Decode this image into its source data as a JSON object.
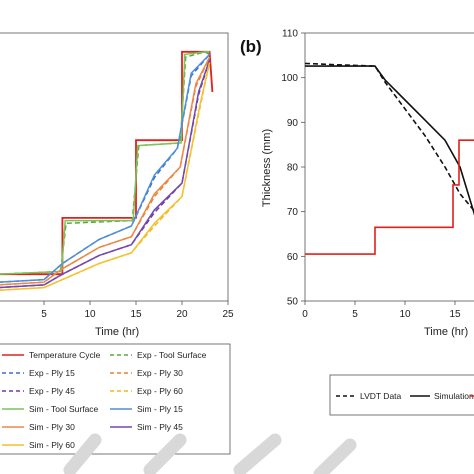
{
  "chart_data": [
    {
      "panel": "a",
      "type": "line",
      "xlabel": "Time (hr)",
      "ylabel": "",
      "xlim": [
        0,
        25
      ],
      "xticks": [
        "5",
        "10",
        "15",
        "20",
        "25"
      ],
      "series": [
        {
          "name": "Temperature Cycle",
          "color": "#e0201b",
          "dash": "solid",
          "x": [
            0,
            7,
            7,
            15,
            15,
            20,
            20,
            23,
            23.3
          ],
          "y": [
            0.1,
            0.1,
            0.31,
            0.31,
            0.6,
            0.6,
            0.93,
            0.93,
            0.78
          ]
        },
        {
          "name": "Exp - Tool Surface",
          "color": "#5aa83c",
          "dash": "dashed",
          "x": [
            0,
            6.8,
            7.4,
            14.6,
            15.3,
            19.8,
            20.4,
            22.5,
            23
          ],
          "y": [
            0.1,
            0.11,
            0.29,
            0.3,
            0.58,
            0.59,
            0.91,
            0.93,
            0.92
          ]
        },
        {
          "name": "Exp - Ply 15",
          "color": "#3a6fc4",
          "dash": "dashed",
          "x": [
            0,
            5,
            7,
            11,
            14.5,
            17,
            19.5,
            21,
            23
          ],
          "y": [
            0.07,
            0.08,
            0.14,
            0.23,
            0.28,
            0.46,
            0.57,
            0.84,
            0.92
          ]
        },
        {
          "name": "Exp - Ply 30",
          "color": "#f07e26",
          "dash": "dashed",
          "x": [
            0,
            5,
            7,
            11,
            14.5,
            17,
            19.8,
            21.5,
            23
          ],
          "y": [
            0.06,
            0.07,
            0.12,
            0.2,
            0.24,
            0.39,
            0.5,
            0.8,
            0.91
          ]
        },
        {
          "name": "Exp - Ply 45",
          "color": "#6a3da3",
          "dash": "dashed",
          "x": [
            0,
            5,
            7,
            11,
            14.5,
            17,
            20,
            21.8,
            23
          ],
          "y": [
            0.05,
            0.06,
            0.1,
            0.17,
            0.21,
            0.33,
            0.44,
            0.77,
            0.9
          ]
        },
        {
          "name": "Exp - Ply 60",
          "color": "#f2b91c",
          "dash": "dashed",
          "x": [
            0,
            5,
            7,
            11,
            14.5,
            17,
            20,
            22,
            23
          ],
          "y": [
            0.04,
            0.05,
            0.08,
            0.14,
            0.18,
            0.28,
            0.39,
            0.73,
            0.89
          ]
        },
        {
          "name": "Sim - Tool Surface",
          "color": "#7dc25a",
          "dash": "solid",
          "x": [
            0,
            6.9,
            7.3,
            14.7,
            15.2,
            19.9,
            20.3,
            22.6,
            23
          ],
          "y": [
            0.1,
            0.11,
            0.3,
            0.3,
            0.58,
            0.59,
            0.92,
            0.93,
            0.93
          ]
        },
        {
          "name": "Sim - Ply 15",
          "color": "#4c8fdc",
          "dash": "solid",
          "x": [
            0,
            5,
            7,
            11,
            14.5,
            17,
            19.5,
            21,
            23
          ],
          "y": [
            0.07,
            0.08,
            0.14,
            0.23,
            0.28,
            0.47,
            0.57,
            0.85,
            0.92
          ]
        },
        {
          "name": "Sim - Ply 30",
          "color": "#ea8a4a",
          "dash": "solid",
          "x": [
            0,
            5,
            7,
            11,
            14.5,
            17,
            19.8,
            21.5,
            23
          ],
          "y": [
            0.06,
            0.07,
            0.12,
            0.2,
            0.24,
            0.4,
            0.5,
            0.81,
            0.91
          ]
        },
        {
          "name": "Sim - Ply 45",
          "color": "#7448b0",
          "dash": "solid",
          "x": [
            0,
            5,
            7,
            11,
            14.5,
            17,
            20,
            21.8,
            23
          ],
          "y": [
            0.05,
            0.06,
            0.1,
            0.17,
            0.21,
            0.34,
            0.44,
            0.78,
            0.9
          ]
        },
        {
          "name": "Sim - Ply 60",
          "color": "#f5c12e",
          "dash": "solid",
          "x": [
            0,
            5,
            7,
            11,
            14.5,
            17,
            20,
            22,
            23
          ],
          "y": [
            0.04,
            0.05,
            0.08,
            0.14,
            0.18,
            0.29,
            0.39,
            0.74,
            0.89
          ]
        }
      ]
    },
    {
      "panel": "b",
      "panel_label": "(b)",
      "type": "line",
      "xlabel": "Time (hr)",
      "ylabel": "Thickness (mm)",
      "xlim": [
        0,
        17.5
      ],
      "ylim": [
        50,
        110
      ],
      "xticks": [
        "0",
        "5",
        "10",
        "15"
      ],
      "yticks": [
        "50",
        "60",
        "70",
        "80",
        "90",
        "100",
        "110"
      ],
      "series": [
        {
          "name": "LVDT Data",
          "color": "#111111",
          "dash": "dashed",
          "x": [
            0,
            3,
            7,
            8,
            10,
            12,
            14,
            15.5,
            17
          ],
          "y": [
            103.2,
            102.9,
            102.6,
            99,
            93,
            87,
            80,
            74,
            70
          ]
        },
        {
          "name": "Simulation",
          "color": "#111111",
          "dash": "solid",
          "x": [
            0,
            3,
            7,
            8,
            10,
            12,
            14,
            15.5,
            17
          ],
          "y": [
            102.6,
            102.6,
            102.6,
            99.5,
            95,
            90.5,
            86,
            80,
            69
          ]
        },
        {
          "name": "",
          "color": "#e0201b",
          "dash": "solid",
          "x": [
            0,
            7,
            7,
            14.8,
            14.8,
            15.4,
            15.4,
            17.5
          ],
          "y": [
            60.5,
            60.5,
            66.5,
            66.5,
            76,
            76,
            86,
            86
          ]
        }
      ]
    }
  ],
  "legends": {
    "a": [
      "Temperature Cycle",
      "Exp - Tool Surface",
      "Exp - Ply 15",
      "Exp - Ply 30",
      "Exp - Ply 45",
      "Exp - Ply 60",
      "Sim - Tool Surface",
      "Sim - Ply 15",
      "Sim - Ply 30",
      "Sim - Ply 45",
      "Sim - Ply 60"
    ],
    "b": [
      "LVDT Data",
      "Simulation"
    ]
  }
}
